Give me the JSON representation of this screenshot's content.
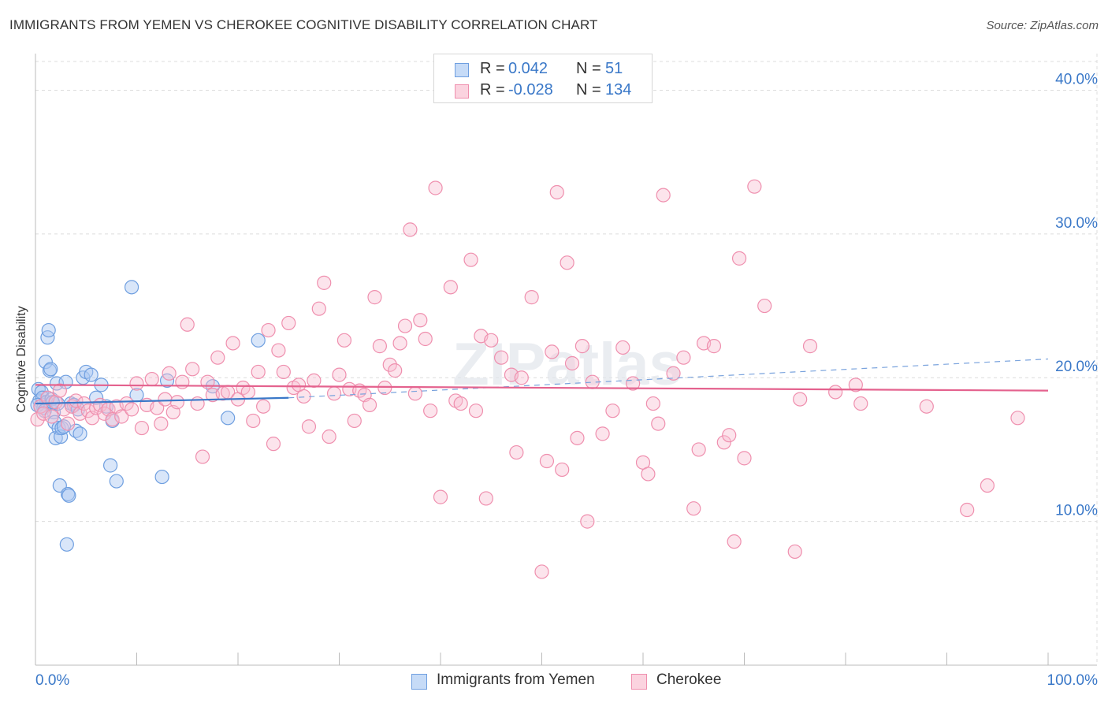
{
  "title": "IMMIGRANTS FROM YEMEN VS CHEROKEE COGNITIVE DISABILITY CORRELATION CHART",
  "source": "Source: ZipAtlas.com",
  "watermark": "ZIPatlas",
  "legend": {
    "rows": [
      {
        "r_label": "R =",
        "r_value": "0.042",
        "n_label": "N =",
        "n_value": "51",
        "color": "#6f9fe0"
      },
      {
        "r_label": "R =",
        "r_value": "-0.028",
        "n_label": "N =",
        "n_value": "134",
        "color": "#ef8fae"
      }
    ]
  },
  "bottom_legend": [
    {
      "label": "Immigrants from Yemen",
      "color": "#6f9fe0"
    },
    {
      "label": "Cherokee",
      "color": "#ef8fae"
    }
  ],
  "chart_data": {
    "type": "scatter",
    "ylabel": "Cognitive Disability",
    "xlim": [
      0,
      100
    ],
    "ylim": [
      0,
      42
    ],
    "x_tick_labels": [
      "0.0%",
      "100.0%"
    ],
    "y_ticks": [
      10,
      20,
      30,
      40
    ],
    "y_tick_labels": [
      "10.0%",
      "20.0%",
      "30.0%",
      "40.0%"
    ],
    "grid": true,
    "series": [
      {
        "name": "Immigrants from Yemen",
        "color": "#6f9fe0",
        "trend": {
          "x": [
            0,
            25
          ],
          "y": [
            18.2,
            18.6
          ],
          "extended_to": [
            100,
            21.3
          ]
        },
        "points": [
          [
            0.3,
            19.2
          ],
          [
            0.4,
            18.4
          ],
          [
            0.5,
            18.0
          ],
          [
            0.6,
            19.0
          ],
          [
            0.7,
            18.6
          ],
          [
            0.8,
            17.9
          ],
          [
            1.0,
            21.1
          ],
          [
            1.1,
            18.3
          ],
          [
            1.2,
            22.8
          ],
          [
            1.3,
            23.3
          ],
          [
            1.4,
            20.5
          ],
          [
            1.5,
            20.6
          ],
          [
            1.6,
            18.5
          ],
          [
            1.8,
            17.6
          ],
          [
            1.9,
            16.9
          ],
          [
            2.0,
            15.8
          ],
          [
            2.1,
            19.6
          ],
          [
            2.2,
            18.2
          ],
          [
            2.3,
            16.5
          ],
          [
            2.4,
            12.5
          ],
          [
            2.5,
            15.9
          ],
          [
            2.6,
            16.5
          ],
          [
            2.8,
            16.6
          ],
          [
            3.0,
            19.7
          ],
          [
            3.2,
            11.9
          ],
          [
            3.3,
            11.8
          ],
          [
            3.5,
            18.2
          ],
          [
            3.8,
            18.1
          ],
          [
            4.0,
            16.3
          ],
          [
            4.4,
            16.1
          ],
          [
            4.7,
            20.0
          ],
          [
            5.0,
            20.4
          ],
          [
            5.5,
            20.2
          ],
          [
            6.0,
            18.6
          ],
          [
            6.5,
            19.5
          ],
          [
            7.0,
            18.0
          ],
          [
            7.4,
            13.9
          ],
          [
            7.6,
            17.0
          ],
          [
            8.0,
            12.8
          ],
          [
            9.5,
            26.3
          ],
          [
            10.0,
            18.8
          ],
          [
            12.5,
            13.1
          ],
          [
            13.0,
            19.8
          ],
          [
            17.5,
            19.4
          ],
          [
            19.0,
            17.2
          ],
          [
            22.0,
            22.6
          ],
          [
            0.2,
            18.1
          ],
          [
            0.9,
            17.7
          ],
          [
            1.7,
            18.3
          ],
          [
            3.1,
            8.4
          ],
          [
            4.2,
            17.8
          ]
        ]
      },
      {
        "name": "Cherokee",
        "color": "#ef8fae",
        "trend": {
          "x": [
            0,
            100
          ],
          "y": [
            19.5,
            19.1
          ]
        },
        "points": [
          [
            0.2,
            17.1
          ],
          [
            0.5,
            18.0
          ],
          [
            0.8,
            17.5
          ],
          [
            1.2,
            18.6
          ],
          [
            1.6,
            17.3
          ],
          [
            2.0,
            18.3
          ],
          [
            2.4,
            19.1
          ],
          [
            2.8,
            17.8
          ],
          [
            3.2,
            16.8
          ],
          [
            3.6,
            18.0
          ],
          [
            4.0,
            18.4
          ],
          [
            4.4,
            17.5
          ],
          [
            4.8,
            18.2
          ],
          [
            5.2,
            17.7
          ],
          [
            5.6,
            17.2
          ],
          [
            6.0,
            17.9
          ],
          [
            6.4,
            18.1
          ],
          [
            6.8,
            17.5
          ],
          [
            7.2,
            17.8
          ],
          [
            7.6,
            17.1
          ],
          [
            8.0,
            18.0
          ],
          [
            8.5,
            17.3
          ],
          [
            9.0,
            18.2
          ],
          [
            9.5,
            17.8
          ],
          [
            10.0,
            19.6
          ],
          [
            10.5,
            16.5
          ],
          [
            11.0,
            18.1
          ],
          [
            11.5,
            19.9
          ],
          [
            12.0,
            17.9
          ],
          [
            12.4,
            16.8
          ],
          [
            12.8,
            18.5
          ],
          [
            13.2,
            20.3
          ],
          [
            13.6,
            17.6
          ],
          [
            14.0,
            18.3
          ],
          [
            14.5,
            19.7
          ],
          [
            15.0,
            23.7
          ],
          [
            15.5,
            20.6
          ],
          [
            16.0,
            18.2
          ],
          [
            16.5,
            14.5
          ],
          [
            17.0,
            19.7
          ],
          [
            17.5,
            18.8
          ],
          [
            18.0,
            21.4
          ],
          [
            18.5,
            18.9
          ],
          [
            19.0,
            19.0
          ],
          [
            19.5,
            22.4
          ],
          [
            20.0,
            18.5
          ],
          [
            20.5,
            19.3
          ],
          [
            21.0,
            19.0
          ],
          [
            21.5,
            17.0
          ],
          [
            22.0,
            20.4
          ],
          [
            22.5,
            18.0
          ],
          [
            23.0,
            23.3
          ],
          [
            23.5,
            15.4
          ],
          [
            24.0,
            21.9
          ],
          [
            24.5,
            20.4
          ],
          [
            25.0,
            23.8
          ],
          [
            25.5,
            19.3
          ],
          [
            26.0,
            19.5
          ],
          [
            26.5,
            18.7
          ],
          [
            27.0,
            16.6
          ],
          [
            27.5,
            19.8
          ],
          [
            28.0,
            24.8
          ],
          [
            28.5,
            26.6
          ],
          [
            29.0,
            15.9
          ],
          [
            29.5,
            18.9
          ],
          [
            30.0,
            20.2
          ],
          [
            30.5,
            22.6
          ],
          [
            31.0,
            19.2
          ],
          [
            31.5,
            17.0
          ],
          [
            32.0,
            19.1
          ],
          [
            32.5,
            18.8
          ],
          [
            33.0,
            18.1
          ],
          [
            33.5,
            25.6
          ],
          [
            34.0,
            22.2
          ],
          [
            34.5,
            19.3
          ],
          [
            35.0,
            20.9
          ],
          [
            35.5,
            20.5
          ],
          [
            36.0,
            22.4
          ],
          [
            36.5,
            23.6
          ],
          [
            37.0,
            30.3
          ],
          [
            37.5,
            18.9
          ],
          [
            38.0,
            24.0
          ],
          [
            38.5,
            22.7
          ],
          [
            39.0,
            17.7
          ],
          [
            39.5,
            33.2
          ],
          [
            40.0,
            11.7
          ],
          [
            41.0,
            26.3
          ],
          [
            41.5,
            18.4
          ],
          [
            42.0,
            18.2
          ],
          [
            43.0,
            28.2
          ],
          [
            43.5,
            17.7
          ],
          [
            44.0,
            22.9
          ],
          [
            44.5,
            11.6
          ],
          [
            45.0,
            22.6
          ],
          [
            46.0,
            21.4
          ],
          [
            47.0,
            20.2
          ],
          [
            47.5,
            14.8
          ],
          [
            48.0,
            20.0
          ],
          [
            49.0,
            25.6
          ],
          [
            50.0,
            6.5
          ],
          [
            50.5,
            14.2
          ],
          [
            51.0,
            21.8
          ],
          [
            51.5,
            32.9
          ],
          [
            52.0,
            13.6
          ],
          [
            52.5,
            28.0
          ],
          [
            53.0,
            21.0
          ],
          [
            53.5,
            15.8
          ],
          [
            54.0,
            22.2
          ],
          [
            54.5,
            10.0
          ],
          [
            55.0,
            19.7
          ],
          [
            56.0,
            16.1
          ],
          [
            57.0,
            17.7
          ],
          [
            58.0,
            22.1
          ],
          [
            59.0,
            19.6
          ],
          [
            60.0,
            14.1
          ],
          [
            60.5,
            13.3
          ],
          [
            61.0,
            18.2
          ],
          [
            61.5,
            16.8
          ],
          [
            62.0,
            32.7
          ],
          [
            63.0,
            20.3
          ],
          [
            64.0,
            21.4
          ],
          [
            65.0,
            10.9
          ],
          [
            65.5,
            15.0
          ],
          [
            66.0,
            22.4
          ],
          [
            67.0,
            22.2
          ],
          [
            68.0,
            15.5
          ],
          [
            68.5,
            16.0
          ],
          [
            69.0,
            8.6
          ],
          [
            69.5,
            28.3
          ],
          [
            70.0,
            14.4
          ],
          [
            71.0,
            33.3
          ],
          [
            72.0,
            25.0
          ],
          [
            75.0,
            7.9
          ],
          [
            75.5,
            18.5
          ],
          [
            76.5,
            22.2
          ],
          [
            79.0,
            19.0
          ],
          [
            81.0,
            19.5
          ],
          [
            81.5,
            18.2
          ],
          [
            88.0,
            18.0
          ],
          [
            92.0,
            10.8
          ],
          [
            94.0,
            12.5
          ],
          [
            97.0,
            17.2
          ]
        ]
      }
    ]
  }
}
